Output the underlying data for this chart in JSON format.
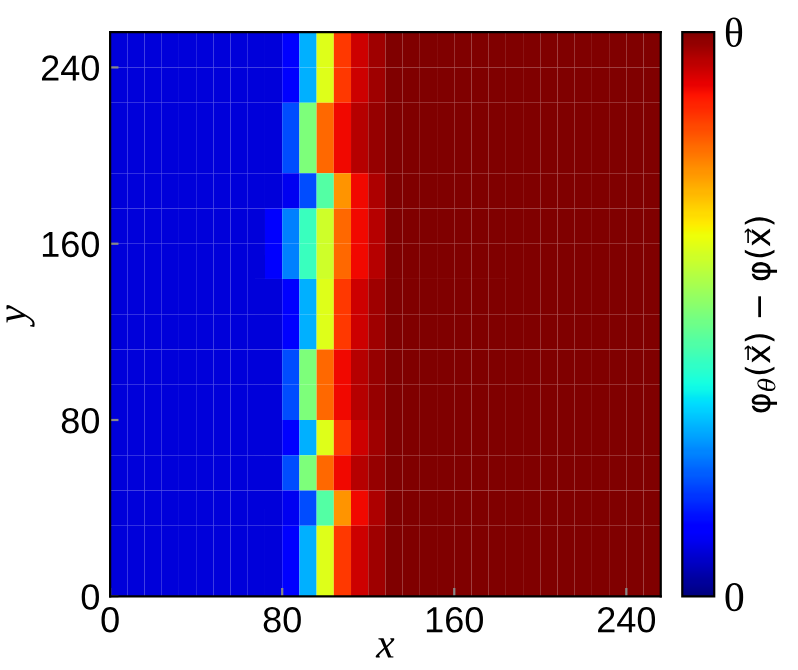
{
  "chart_data": {
    "type": "heatmap",
    "xlabel": "x",
    "ylabel": "y",
    "clabel": "φ$_{θ}$(x⃗) − φ(x⃗)",
    "x": [
      4,
      12,
      20,
      28,
      36,
      44,
      52,
      60,
      68,
      76,
      84,
      92,
      100,
      108,
      116,
      124,
      132,
      140,
      148,
      156,
      164,
      172,
      180,
      188,
      196,
      204,
      212,
      220,
      228,
      236,
      244,
      252
    ],
    "y": [
      248,
      232,
      216,
      200,
      184,
      168,
      152,
      136,
      120,
      104,
      88,
      72,
      56,
      40,
      24,
      8
    ],
    "xlim": [
      0,
      256
    ],
    "ylim": [
      0,
      256
    ],
    "xticks": [
      0,
      80,
      160,
      240
    ],
    "yticks": [
      0,
      80,
      160,
      240
    ],
    "clim": [
      0,
      1
    ],
    "cticks": [
      0,
      {
        "value": 1,
        "label": "θ"
      }
    ],
    "cells": [
      [
        0.08,
        0.08,
        0.08,
        0.08,
        0.08,
        0.08,
        0.08,
        0.08,
        0.08,
        0.08,
        0.12,
        0.3,
        0.62,
        0.85,
        0.93,
        0.97,
        1,
        1,
        1,
        1,
        1,
        1,
        1,
        1,
        1,
        1,
        1,
        1,
        1,
        1,
        1,
        1
      ],
      [
        0.08,
        0.08,
        0.08,
        0.08,
        0.08,
        0.08,
        0.08,
        0.08,
        0.08,
        0.08,
        0.12,
        0.3,
        0.62,
        0.85,
        0.93,
        0.97,
        1,
        1,
        1,
        1,
        1,
        1,
        1,
        1,
        1,
        1,
        1,
        1,
        1,
        1,
        1,
        1
      ],
      [
        0.08,
        0.08,
        0.08,
        0.08,
        0.08,
        0.08,
        0.08,
        0.08,
        0.08,
        0.08,
        0.2,
        0.5,
        0.8,
        0.9,
        0.95,
        0.98,
        1,
        1,
        1,
        1,
        1,
        1,
        1,
        1,
        1,
        1,
        1,
        1,
        1,
        1,
        1,
        1
      ],
      [
        0.08,
        0.08,
        0.08,
        0.08,
        0.08,
        0.08,
        0.08,
        0.08,
        0.08,
        0.08,
        0.2,
        0.5,
        0.8,
        0.9,
        0.95,
        0.98,
        1,
        1,
        1,
        1,
        1,
        1,
        1,
        1,
        1,
        1,
        1,
        1,
        1,
        1,
        1,
        1
      ],
      [
        0.08,
        0.08,
        0.08,
        0.08,
        0.08,
        0.08,
        0.08,
        0.08,
        0.08,
        0.08,
        0.1,
        0.2,
        0.45,
        0.75,
        0.9,
        0.96,
        1,
        1,
        1,
        1,
        1,
        1,
        1,
        1,
        1,
        1,
        1,
        1,
        1,
        1,
        1,
        1
      ],
      [
        0.08,
        0.08,
        0.08,
        0.08,
        0.08,
        0.08,
        0.08,
        0.08,
        0.08,
        0.12,
        0.25,
        0.42,
        0.6,
        0.8,
        0.9,
        0.95,
        1,
        1,
        1,
        1,
        1,
        1,
        1,
        1,
        1,
        1,
        1,
        1,
        1,
        1,
        1,
        1
      ],
      [
        0.08,
        0.08,
        0.08,
        0.08,
        0.08,
        0.08,
        0.08,
        0.08,
        0.08,
        0.12,
        0.25,
        0.42,
        0.6,
        0.8,
        0.9,
        0.95,
        1,
        1,
        1,
        1,
        1,
        1,
        1,
        1,
        1,
        1,
        1,
        1,
        1,
        1,
        1,
        1
      ],
      [
        0.08,
        0.08,
        0.08,
        0.08,
        0.08,
        0.08,
        0.08,
        0.08,
        0.08,
        0.08,
        0.12,
        0.3,
        0.62,
        0.85,
        0.93,
        0.97,
        1,
        1,
        1,
        1,
        1,
        1,
        1,
        1,
        1,
        1,
        1,
        1,
        1,
        1,
        1,
        1
      ],
      [
        0.08,
        0.08,
        0.08,
        0.08,
        0.08,
        0.08,
        0.08,
        0.08,
        0.08,
        0.08,
        0.12,
        0.3,
        0.62,
        0.85,
        0.93,
        0.97,
        1,
        1,
        1,
        1,
        1,
        1,
        1,
        1,
        1,
        1,
        1,
        1,
        1,
        1,
        1,
        1
      ],
      [
        0.08,
        0.08,
        0.08,
        0.08,
        0.08,
        0.08,
        0.08,
        0.08,
        0.08,
        0.08,
        0.2,
        0.5,
        0.8,
        0.9,
        0.95,
        0.98,
        1,
        1,
        1,
        1,
        1,
        1,
        1,
        1,
        1,
        1,
        1,
        1,
        1,
        1,
        1,
        1
      ],
      [
        0.08,
        0.08,
        0.08,
        0.08,
        0.08,
        0.08,
        0.08,
        0.08,
        0.08,
        0.08,
        0.2,
        0.5,
        0.8,
        0.9,
        0.95,
        0.98,
        1,
        1,
        1,
        1,
        1,
        1,
        1,
        1,
        1,
        1,
        1,
        1,
        1,
        1,
        1,
        1
      ],
      [
        0.08,
        0.08,
        0.08,
        0.08,
        0.08,
        0.08,
        0.08,
        0.08,
        0.08,
        0.08,
        0.12,
        0.3,
        0.62,
        0.85,
        0.93,
        0.97,
        1,
        1,
        1,
        1,
        1,
        1,
        1,
        1,
        1,
        1,
        1,
        1,
        1,
        1,
        1,
        1
      ],
      [
        0.08,
        0.08,
        0.08,
        0.08,
        0.08,
        0.08,
        0.08,
        0.08,
        0.08,
        0.08,
        0.2,
        0.5,
        0.8,
        0.9,
        0.95,
        0.98,
        1,
        1,
        1,
        1,
        1,
        1,
        1,
        1,
        1,
        1,
        1,
        1,
        1,
        1,
        1,
        1
      ],
      [
        0.08,
        0.08,
        0.08,
        0.08,
        0.08,
        0.08,
        0.08,
        0.08,
        0.08,
        0.08,
        0.1,
        0.2,
        0.45,
        0.75,
        0.9,
        0.96,
        1,
        1,
        1,
        1,
        1,
        1,
        1,
        1,
        1,
        1,
        1,
        1,
        1,
        1,
        1,
        1
      ],
      [
        0.08,
        0.08,
        0.08,
        0.08,
        0.08,
        0.08,
        0.08,
        0.08,
        0.08,
        0.08,
        0.12,
        0.3,
        0.62,
        0.85,
        0.93,
        0.97,
        1,
        1,
        1,
        1,
        1,
        1,
        1,
        1,
        1,
        1,
        1,
        1,
        1,
        1,
        1,
        1
      ],
      [
        0.08,
        0.08,
        0.08,
        0.08,
        0.08,
        0.08,
        0.08,
        0.08,
        0.08,
        0.08,
        0.12,
        0.3,
        0.62,
        0.85,
        0.93,
        0.97,
        1,
        1,
        1,
        1,
        1,
        1,
        1,
        1,
        1,
        1,
        1,
        1,
        1,
        1,
        1,
        1
      ]
    ]
  }
}
